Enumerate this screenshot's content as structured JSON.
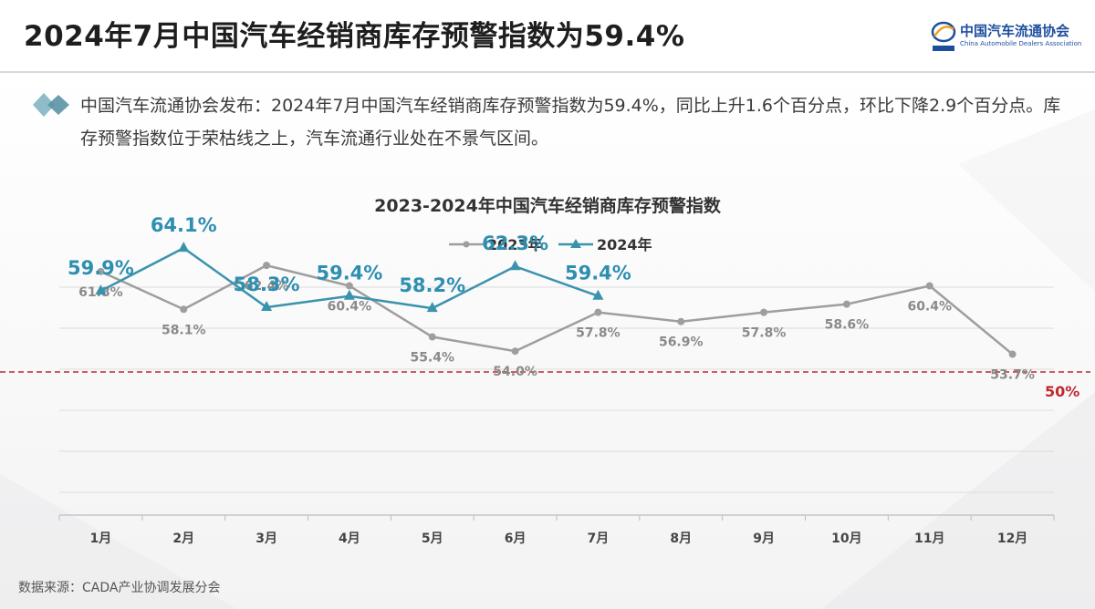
{
  "header": {
    "title": "2024年7月中国汽车经销商库存预警指数为59.4%",
    "logo_cn": "中国汽车流通协会",
    "logo_en": "China Automobile Dealers Association"
  },
  "summary": {
    "text": "中国汽车流通协会发布：2024年7月中国汽车经销商库存预警指数为59.4%，同比上升1.6个百分点，环比下降2.9个百分点。库存预警指数位于荣枯线之上，汽车流通行业处在不景气区间。"
  },
  "source": {
    "text": "数据来源：CADA产业协调发展分会"
  },
  "colors": {
    "series_2023": "#9e9e9e",
    "series_2024": "#3a93ad",
    "label_2024": "#2e8fb0",
    "label_2023": "#8a8a8a",
    "threshold": "#c0282d"
  },
  "chart_data": {
    "type": "line",
    "title": "2023-2024年中国汽车经销商库存预警指数",
    "categories": [
      "1月",
      "2月",
      "3月",
      "4月",
      "5月",
      "6月",
      "7月",
      "8月",
      "9月",
      "10月",
      "11月",
      "12月"
    ],
    "series": [
      {
        "name": "2023年",
        "values": [
          61.8,
          58.1,
          62.4,
          60.4,
          55.4,
          54.0,
          57.8,
          56.9,
          57.8,
          58.6,
          60.4,
          53.7
        ],
        "labels": [
          "61.8%",
          "58.1%",
          "62.4%",
          "60.4%",
          "55.4%",
          "54.0%",
          "57.8%",
          "56.9%",
          "57.8%",
          "58.6%",
          "60.4%",
          "53.7%"
        ]
      },
      {
        "name": "2024年",
        "values": [
          59.9,
          64.1,
          58.3,
          59.4,
          58.2,
          62.3,
          59.4,
          null,
          null,
          null,
          null,
          null
        ],
        "labels": [
          "59.9%",
          "64.1%",
          "58.3%",
          "59.4%",
          "58.2%",
          "62.3%",
          "59.4%",
          null,
          null,
          null,
          null,
          null
        ]
      }
    ],
    "threshold": {
      "value": 50,
      "label": "50%"
    },
    "legend_position": "top-center",
    "grid": true
  }
}
